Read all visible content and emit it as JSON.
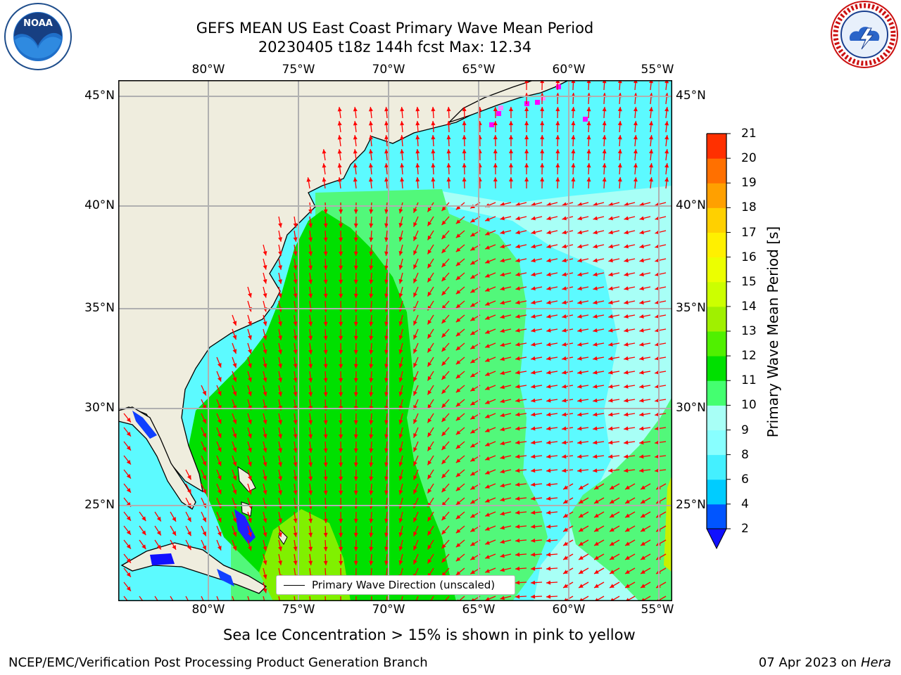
{
  "title": {
    "line1": "GEFS MEAN US East Coast Primary Wave Mean Period",
    "line2": "20230405 t18z 144h fcst   Max: 12.34"
  },
  "map": {
    "lon_ticks": [
      "80°W",
      "75°W",
      "70°W",
      "65°W",
      "60°W",
      "55°W"
    ],
    "lat_ticks": [
      "45°N",
      "40°N",
      "35°N",
      "30°N",
      "25°N"
    ],
    "lon_range": [
      -85,
      -54.5
    ],
    "lat_range": [
      20.5,
      45.8
    ],
    "grid": true,
    "colors": {
      "land": "#efedde",
      "arrow": "#ff0000",
      "grid": "#b0b0b0"
    }
  },
  "colorbar": {
    "label": "Primary Wave Mean Period [s]",
    "ticks": [
      "2",
      "4",
      "6",
      "8",
      "9",
      "10",
      "11",
      "12",
      "13",
      "14",
      "15",
      "16",
      "17",
      "18",
      "19",
      "20",
      "21"
    ],
    "colors": [
      "#0055ff",
      "#00ccff",
      "#44f0ff",
      "#88ffff",
      "#a8fff6",
      "#44ff70",
      "#00e000",
      "#50f000",
      "#a0f000",
      "#ccff00",
      "#ecff00",
      "#fff000",
      "#ffd000",
      "#ffa000",
      "#ff7000",
      "#ff3000",
      "#ff0000"
    ],
    "extend_under_color": "#1010ff"
  },
  "legend": {
    "label": "Primary Wave Direction (unscaled)"
  },
  "note": "Sea Ice Concentration > 15% is shown in pink to yellow",
  "footer": {
    "left": "NCEP/EMC/Verification Post Processing Product Generation Branch",
    "date": "07 Apr 2023 on ",
    "machine": "Hera"
  },
  "logos": {
    "left": "NOAA",
    "right": "NATIONAL WEATHER SERVICE"
  }
}
